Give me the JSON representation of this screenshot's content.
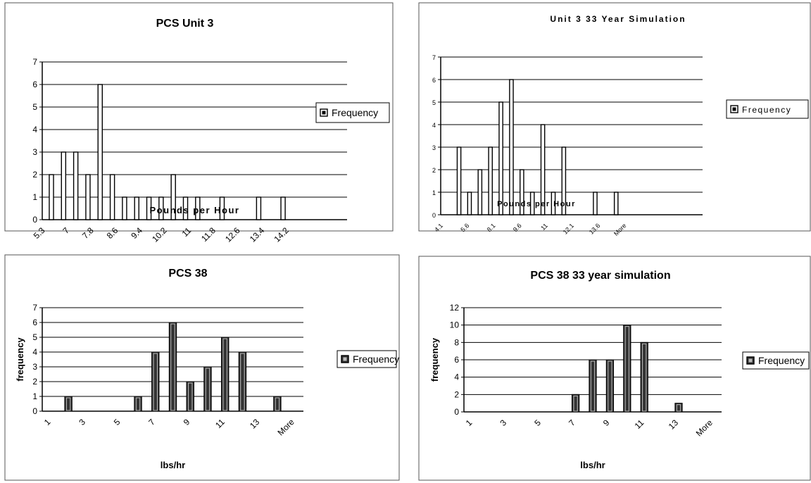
{
  "chart_data": [
    {
      "type": "bar",
      "title": "PCS Unit 3",
      "xlabel": "Pounds per Hour",
      "ylabel": "",
      "ylim": [
        0,
        7
      ],
      "yticks": [
        "0",
        "1",
        "2",
        "3",
        "4",
        "5",
        "6",
        "7"
      ],
      "grid": true,
      "legend_placement": "right",
      "bar_style": "hollow",
      "categories": [
        "x0",
        "x1",
        "x2",
        "x3",
        "x4",
        "x5",
        "x6",
        "x7",
        "x8",
        "x9",
        "x10",
        "x11",
        "x12",
        "x13",
        "x14",
        "x15",
        "x16",
        "x17",
        "x18",
        "x19",
        "x20",
        "x21",
        "x22",
        "x23",
        "x24",
        "x25",
        "x26",
        "x27",
        "x28",
        "x29",
        "x30",
        "x31",
        "x32",
        "x33",
        "x34",
        "x35",
        "x36",
        "x37",
        "x38",
        "x39",
        "x40",
        "x41",
        "x42",
        "x43",
        "x44",
        "x45",
        "x46",
        "x47",
        "x48",
        "x49"
      ],
      "xtick_labels": [
        {
          "label": "5.3",
          "at": "x0"
        },
        {
          "label": "7",
          "at": "x4"
        },
        {
          "label": "7.8",
          "at": "x8"
        },
        {
          "label": "8.6",
          "at": "x12"
        },
        {
          "label": "9.4",
          "at": "x16"
        },
        {
          "label": "10.2",
          "at": "x20"
        },
        {
          "label": "11",
          "at": "x24"
        },
        {
          "label": "11.8",
          "at": "x28"
        },
        {
          "label": "12.6",
          "at": "x32"
        },
        {
          "label": "13.4",
          "at": "x36"
        },
        {
          "label": "14.2",
          "at": "x40"
        }
      ],
      "series": [
        {
          "name": "Frequency",
          "values": [
            0,
            2,
            0,
            3,
            0,
            3,
            0,
            2,
            0,
            6,
            0,
            2,
            0,
            1,
            0,
            1,
            0,
            1,
            0,
            1,
            0,
            2,
            0,
            1,
            0,
            1,
            0,
            0,
            0,
            1,
            0,
            0,
            0,
            0,
            0,
            1,
            0,
            0,
            0,
            1,
            0,
            0,
            0,
            0,
            0,
            0,
            0,
            0,
            0,
            0
          ]
        }
      ]
    },
    {
      "type": "bar",
      "title": "Unit 3  33 Year Simulation",
      "xlabel": "Pounds per Hour",
      "ylabel": "",
      "ylim": [
        0,
        7
      ],
      "yticks": [
        "0",
        "1",
        "2",
        "3",
        "4",
        "5",
        "6",
        "7"
      ],
      "grid": true,
      "legend_placement": "right",
      "bar_style": "hollow",
      "categories": [
        "x0",
        "x1",
        "x2",
        "x3",
        "x4",
        "x5",
        "x6",
        "x7",
        "x8",
        "x9",
        "x10",
        "x11",
        "x12",
        "x13",
        "x14",
        "x15",
        "x16",
        "x17",
        "x18",
        "x19",
        "x20",
        "x21",
        "x22",
        "x23",
        "x24",
        "x25",
        "x26",
        "x27",
        "x28",
        "x29",
        "x30",
        "x31",
        "x32",
        "x33",
        "x34",
        "x35",
        "x36",
        "x37",
        "x38",
        "x39",
        "x40",
        "x41",
        "x42",
        "x43",
        "x44",
        "x45",
        "x46",
        "x47",
        "x48",
        "x49"
      ],
      "xtick_labels": [
        {
          "label": "4.1",
          "at": "x0"
        },
        {
          "label": "5.6",
          "at": "x5"
        },
        {
          "label": "8.1",
          "at": "x10"
        },
        {
          "label": "9.6",
          "at": "x15"
        },
        {
          "label": "11",
          "at": "x20"
        },
        {
          "label": "12.1",
          "at": "x25"
        },
        {
          "label": "13.6",
          "at": "x30"
        },
        {
          "label": "More",
          "at": "x35"
        }
      ],
      "series": [
        {
          "name": "Frequency",
          "values": [
            0,
            0,
            0,
            3,
            0,
            1,
            0,
            2,
            0,
            3,
            0,
            5,
            0,
            6,
            0,
            2,
            0,
            1,
            0,
            4,
            0,
            1,
            0,
            3,
            0,
            0,
            0,
            0,
            0,
            1,
            0,
            0,
            0,
            1,
            0,
            0,
            0,
            0,
            0,
            0,
            0,
            0,
            0,
            0,
            0,
            0,
            0,
            0,
            0,
            0
          ]
        }
      ]
    },
    {
      "type": "bar",
      "title": "PCS 38",
      "xlabel": "lbs/hr",
      "ylabel": "frequency",
      "ylim": [
        0,
        7
      ],
      "yticks": [
        "0",
        "1",
        "2",
        "3",
        "4",
        "5",
        "6",
        "7"
      ],
      "grid": true,
      "legend_placement": "right",
      "bar_style": "filled",
      "categories": [
        "1",
        "2",
        "3",
        "4",
        "5",
        "6",
        "7",
        "8",
        "9",
        "10",
        "11",
        "12",
        "13",
        "14",
        "More"
      ],
      "xtick_labels": [
        {
          "label": "1",
          "at": "1"
        },
        {
          "label": "3",
          "at": "3"
        },
        {
          "label": "5",
          "at": "5"
        },
        {
          "label": "7",
          "at": "7"
        },
        {
          "label": "9",
          "at": "9"
        },
        {
          "label": "11",
          "at": "11"
        },
        {
          "label": "13",
          "at": "13"
        },
        {
          "label": "More",
          "at": "More"
        }
      ],
      "series": [
        {
          "name": "Frequency",
          "values": [
            0,
            1,
            0,
            0,
            0,
            1,
            4,
            6,
            2,
            3,
            5,
            4,
            0,
            1,
            0
          ]
        }
      ]
    },
    {
      "type": "bar",
      "title": "PCS 38 33 year simulation",
      "xlabel": "lbs/hr",
      "ylabel": "frequency",
      "ylim": [
        0,
        12
      ],
      "yticks": [
        "0",
        "2",
        "4",
        "6",
        "8",
        "10",
        "12"
      ],
      "grid": true,
      "legend_placement": "right",
      "bar_style": "filled",
      "categories": [
        "1",
        "2",
        "3",
        "4",
        "5",
        "6",
        "7",
        "8",
        "9",
        "10",
        "11",
        "12",
        "13",
        "14",
        "More"
      ],
      "xtick_labels": [
        {
          "label": "1",
          "at": "1"
        },
        {
          "label": "3",
          "at": "3"
        },
        {
          "label": "5",
          "at": "5"
        },
        {
          "label": "7",
          "at": "7"
        },
        {
          "label": "9",
          "at": "9"
        },
        {
          "label": "11",
          "at": "11"
        },
        {
          "label": "13",
          "at": "13"
        },
        {
          "label": "More",
          "at": "More"
        }
      ],
      "series": [
        {
          "name": "Frequency",
          "values": [
            0,
            0,
            0,
            0,
            0,
            0,
            2,
            6,
            6,
            10,
            8,
            0,
            1,
            0,
            0
          ]
        }
      ]
    }
  ]
}
